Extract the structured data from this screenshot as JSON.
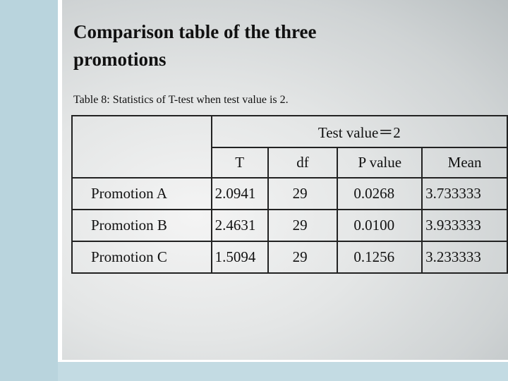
{
  "title": "Comparison table of the three promotions",
  "caption": "Table 8: Statistics of T-test when test value is 2.",
  "table": {
    "group_header": "Test value＝2",
    "columns": [
      "T",
      "df",
      "P value",
      "Mean"
    ],
    "rows": [
      [
        "Promotion A",
        "2.0941",
        "29",
        "0.0268",
        "3.733333"
      ],
      [
        "Promotion B",
        "2.4631",
        "29",
        "0.0100",
        "3.933333"
      ],
      [
        "Promotion C",
        "1.5094",
        "29",
        "0.1256",
        "3.233333"
      ]
    ]
  }
}
